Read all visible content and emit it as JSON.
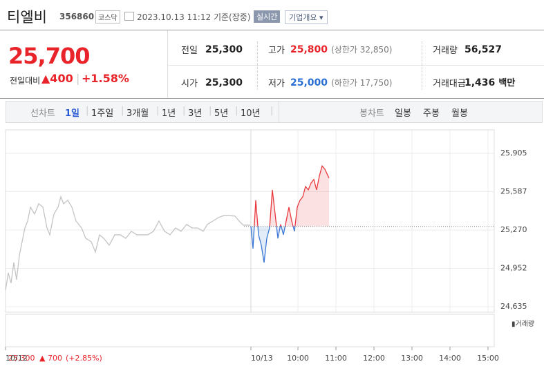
{
  "header": {
    "title": "티엘비",
    "code": "356860",
    "market": "코스닥",
    "timestamp": "2023.10.13 11:12",
    "status": "기준(장중)",
    "realtime": "실시간",
    "company_info": "기업개요 ▾"
  },
  "summary": {
    "price": "25,700",
    "change_label": "전일대비",
    "change": "▲400",
    "rate": "+1.58%",
    "stats": [
      {
        "label": "전일",
        "value": "25,300"
      },
      {
        "label": "고가",
        "value": "25,800",
        "note": "(상한가 32,850)"
      },
      {
        "label": "거래량",
        "value": "56,527"
      },
      {
        "label": "시가",
        "value": "25,300"
      },
      {
        "label": "저가",
        "value": "25,000",
        "note": "(하한가 17,750)"
      },
      {
        "label": "거래대금",
        "value": "1,436",
        "unit": "백만"
      }
    ]
  },
  "tabs": {
    "line_label": "선차트",
    "line": [
      "1일",
      "1주일",
      "3개월",
      "1년",
      "3년",
      "5년",
      "10년"
    ],
    "candle_label": "봉차트",
    "candle": [
      "일봉",
      "주봉",
      "월봉"
    ]
  },
  "chart_footer": {
    "price": "25,300",
    "change": "▲ 700",
    "rate": "(+2.85%)",
    "volume_legend": "▮거래량"
  },
  "chart_data": {
    "type": "line",
    "xlim": [
      0,
      707
    ],
    "ylim": [
      24589,
      26099
    ],
    "xticks": [
      {
        "value": 0,
        "label": "10/12"
      },
      {
        "value": 355,
        "label": "10/13"
      },
      {
        "value": 423,
        "label": "10:00"
      },
      {
        "value": 478,
        "label": "11:00"
      },
      {
        "value": 533,
        "label": "12:00"
      },
      {
        "value": 588,
        "label": "13:00"
      },
      {
        "value": 643,
        "label": "14:00"
      },
      {
        "value": 698,
        "label": "15:00"
      }
    ],
    "yticks": [
      {
        "value": 25905,
        "label": "25,905"
      },
      {
        "value": 25587,
        "label": "25,587"
      },
      {
        "value": 25270,
        "label": "25,270"
      },
      {
        "value": 24952,
        "label": "24,952"
      },
      {
        "value": 24635,
        "label": "24,635"
      }
    ],
    "grid": true,
    "reference_value": 25300,
    "series": [
      {
        "color": "#c4c4c4",
        "x": [
          0,
          4,
          8,
          12,
          16,
          20,
          24,
          28,
          32,
          36,
          42,
          48,
          54,
          60,
          64,
          70,
          76,
          80,
          84,
          90,
          96,
          102,
          110,
          116,
          124,
          130,
          136,
          142,
          150,
          158,
          166,
          174,
          182,
          190,
          198,
          206,
          214,
          222,
          230,
          238,
          246,
          254,
          262,
          270,
          278,
          286,
          292,
          300,
          308,
          316,
          324,
          332,
          338,
          344,
          354
        ],
        "values": [
          24772,
          24915,
          24830,
          25001,
          24858,
          25058,
          25173,
          25287,
          25344,
          25459,
          25402,
          25487,
          25459,
          25287,
          25230,
          25402,
          25459,
          25545,
          25487,
          25516,
          25459,
          25344,
          25287,
          25201,
          25173,
          25087,
          25230,
          25201,
          25144,
          25230,
          25230,
          25201,
          25259,
          25230,
          25230,
          25230,
          25259,
          25344,
          25259,
          25230,
          25287,
          25259,
          25316,
          25287,
          25287,
          25259,
          25316,
          25344,
          25373,
          25390,
          25390,
          25385,
          25344,
          25310,
          25310
        ]
      },
      {
        "color": "#e8383d",
        "down_color": "#3a78d4",
        "x": [
          355,
          358,
          362,
          366,
          370,
          374,
          378,
          382,
          386,
          390,
          394,
          398,
          402,
          406,
          410,
          414,
          418,
          422,
          426,
          430,
          434,
          438,
          442,
          446,
          450,
          454,
          458,
          462,
          468
        ],
        "values": [
          25300,
          25116,
          25516,
          25230,
          25144,
          25000,
          25201,
          25287,
          25602,
          25402,
          25201,
          25316,
          25230,
          25344,
          25459,
          25344,
          25259,
          25459,
          25516,
          25545,
          25630,
          25602,
          25659,
          25688,
          25602,
          25716,
          25800,
          25773,
          25700
        ]
      }
    ]
  }
}
